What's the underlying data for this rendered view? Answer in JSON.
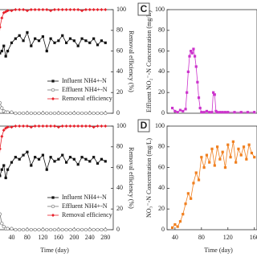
{
  "chart_data": [
    {
      "type": "line",
      "x_label": null,
      "y2_label": "Removal efficiency (%)",
      "x": [
        0,
        5,
        10,
        15,
        20,
        25,
        30,
        40,
        50,
        60,
        70,
        80,
        90,
        100,
        110,
        120,
        130,
        140,
        150,
        160,
        170,
        180,
        190,
        200,
        210,
        220,
        230,
        240,
        250,
        260,
        270,
        280
      ],
      "xlim": [
        0,
        300
      ],
      "xticks": [
        40,
        80,
        120,
        160,
        200,
        240,
        280
      ],
      "ylim": [
        0,
        100
      ],
      "y2lim": [
        0,
        100
      ],
      "y2ticks": [
        0,
        20,
        40,
        60,
        80,
        100
      ],
      "legend": "lower right",
      "series": [
        {
          "name": "Influent NH4+-N",
          "color": "#111111",
          "marker": "square",
          "values": [
            60,
            62,
            58,
            60,
            65,
            55,
            60,
            68,
            72,
            75,
            70,
            78,
            65,
            72,
            70,
            74,
            60,
            72,
            68,
            70,
            75,
            68,
            72,
            70,
            65,
            72,
            70,
            68,
            72,
            66,
            70,
            68
          ]
        },
        {
          "name": "Effluent NH4+-N",
          "color": "#777777",
          "marker": "open-circle",
          "values": [
            45,
            30,
            10,
            5,
            2,
            1,
            1,
            1,
            0,
            0,
            0,
            0,
            0,
            0,
            0,
            0,
            0,
            0,
            0,
            0,
            0,
            0,
            0,
            0,
            0,
            0,
            0,
            0,
            0,
            0,
            0,
            0
          ]
        },
        {
          "name": "Removal efficiency",
          "color": "#e8202a",
          "marker": "diamond",
          "axis": "y2",
          "values": [
            25,
            50,
            83,
            92,
            97,
            98,
            99,
            99,
            100,
            100,
            100,
            99,
            100,
            100,
            100,
            100,
            100,
            99,
            100,
            100,
            100,
            100,
            100,
            100,
            100,
            99,
            100,
            100,
            100,
            100,
            100,
            100
          ]
        }
      ]
    },
    {
      "type": "line",
      "x_label": "Time (day)",
      "y2_label": "Removal efficiency (%)",
      "x": [
        0,
        5,
        10,
        15,
        20,
        25,
        30,
        40,
        50,
        60,
        70,
        80,
        90,
        100,
        110,
        120,
        130,
        140,
        150,
        160,
        170,
        180,
        190,
        200,
        210,
        220,
        230,
        240,
        250,
        260,
        270,
        280
      ],
      "xlim": [
        0,
        300
      ],
      "xticks": [
        40,
        80,
        120,
        160,
        200,
        240,
        280
      ],
      "ylim": [
        0,
        100
      ],
      "y2lim": [
        0,
        100
      ],
      "y2ticks": [
        0,
        20,
        40,
        60,
        80,
        100
      ],
      "legend": "lower right",
      "series": [
        {
          "name": "Influent NH4+-N",
          "color": "#111111",
          "marker": "square",
          "values": [
            55,
            60,
            52,
            58,
            62,
            50,
            58,
            65,
            70,
            68,
            72,
            75,
            62,
            70,
            68,
            72,
            58,
            70,
            66,
            68,
            72,
            65,
            70,
            68,
            63,
            70,
            68,
            66,
            70,
            64,
            68,
            66
          ]
        },
        {
          "name": "Effluent NH4+-N",
          "color": "#777777",
          "marker": "open-circle",
          "values": [
            50,
            35,
            15,
            6,
            3,
            1,
            1,
            1,
            0,
            0,
            0,
            0,
            0,
            0,
            0,
            0,
            0,
            0,
            0,
            0,
            0,
            0,
            0,
            0,
            0,
            0,
            0,
            0,
            0,
            0,
            0,
            0
          ]
        },
        {
          "name": "Removal efficiency",
          "color": "#e8202a",
          "marker": "diamond",
          "axis": "y2",
          "values": [
            20,
            42,
            78,
            90,
            96,
            98,
            99,
            99,
            100,
            100,
            100,
            100,
            99,
            100,
            100,
            100,
            100,
            100,
            100,
            99,
            100,
            100,
            100,
            100,
            100,
            100,
            100,
            100,
            99,
            100,
            100,
            100
          ]
        }
      ]
    },
    {
      "type": "line",
      "panel": "C",
      "x_label": null,
      "y_label": "Effluent NO₂⁻-N Concentration (mg/L)",
      "x": [
        36,
        40,
        44,
        48,
        52,
        56,
        58,
        60,
        62,
        64,
        66,
        68,
        70,
        72,
        74,
        76,
        78,
        80,
        84,
        88,
        92,
        96,
        98,
        100,
        102,
        104,
        108,
        112,
        116,
        120,
        130,
        140,
        150,
        160
      ],
      "xlim": [
        28,
        164
      ],
      "xticks": [
        40,
        80,
        120,
        160
      ],
      "ylim": [
        0,
        100
      ],
      "yticks": [
        0,
        20,
        40,
        60,
        80,
        100
      ],
      "series": [
        {
          "color": "#cc33cc",
          "marker": "square",
          "values": [
            5,
            2,
            1,
            3,
            2,
            4,
            20,
            40,
            55,
            60,
            58,
            62,
            55,
            45,
            30,
            15,
            5,
            1,
            1,
            2,
            1,
            1,
            20,
            18,
            2,
            1,
            1,
            1,
            1,
            1,
            1,
            1,
            1,
            1
          ]
        }
      ]
    },
    {
      "type": "line",
      "panel": "D",
      "x_label": "Time (day)",
      "y_label": "NO₃⁻-N Concentration (mg/L)",
      "x": [
        36,
        40,
        44,
        48,
        52,
        56,
        60,
        64,
        68,
        72,
        76,
        80,
        84,
        88,
        92,
        96,
        100,
        104,
        108,
        112,
        116,
        120,
        124,
        128,
        132,
        136,
        140,
        144,
        148,
        152,
        156,
        160
      ],
      "xlim": [
        28,
        164
      ],
      "xticks": [
        40,
        80,
        120,
        160
      ],
      "ylim": [
        0,
        100
      ],
      "yticks": [
        0,
        20,
        40,
        60,
        80,
        100
      ],
      "series": [
        {
          "color": "#f07f1e",
          "marker": "square",
          "values": [
            2,
            5,
            3,
            8,
            15,
            25,
            35,
            30,
            45,
            55,
            48,
            70,
            60,
            72,
            65,
            78,
            62,
            80,
            68,
            75,
            60,
            82,
            70,
            85,
            65,
            78,
            72,
            80,
            68,
            82,
            74,
            70
          ]
        }
      ]
    }
  ]
}
